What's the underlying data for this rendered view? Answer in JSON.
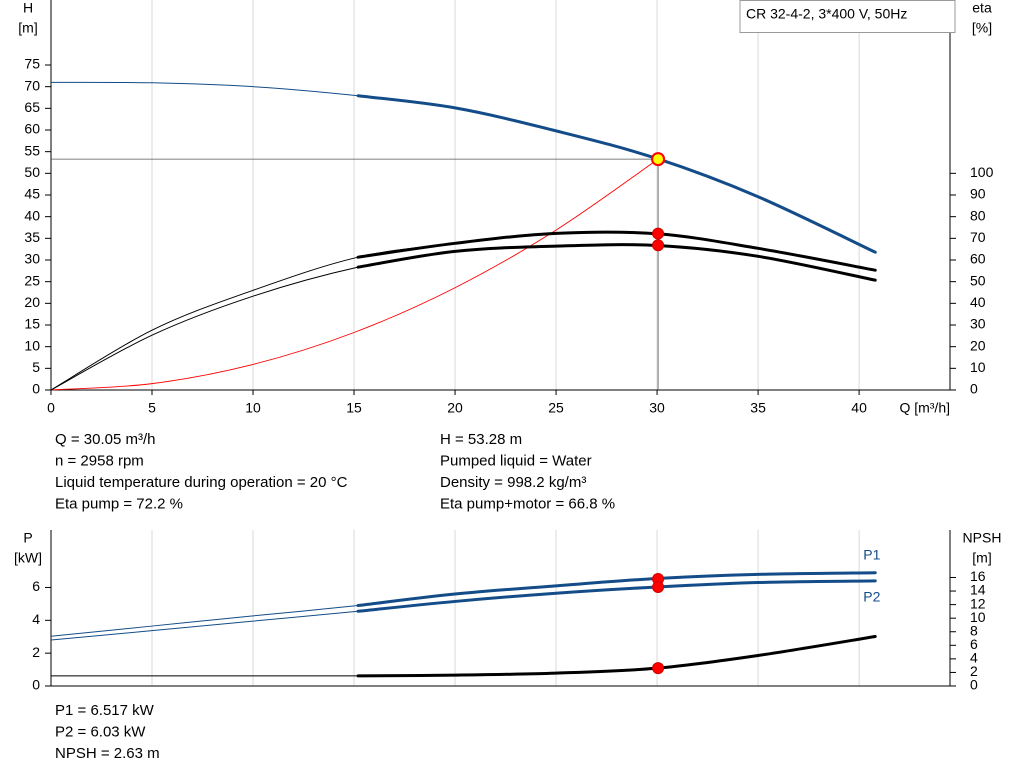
{
  "chart_data": [
    {
      "type": "line",
      "title": "CR 32-4-2, 3*400 V, 50Hz",
      "x_label": "Q [m³/h]",
      "y_label": [
        "H",
        "[m]"
      ],
      "y2_label": [
        "eta",
        "[%]"
      ],
      "x": [
        0,
        5,
        10,
        15.2,
        20,
        25,
        30,
        35,
        40.8
      ],
      "xlim": [
        0,
        44.5
      ],
      "xticks": [
        0,
        5,
        10,
        15,
        20,
        25,
        30,
        35,
        40
      ],
      "x_tick_labels": true,
      "ylim": [
        0,
        90
      ],
      "yticks": [
        0,
        5,
        10,
        15,
        20,
        25,
        30,
        35,
        40,
        45,
        50,
        55,
        60,
        65,
        70,
        75
      ],
      "y2lim": [
        0,
        180
      ],
      "y2ticks": [
        0,
        10,
        20,
        30,
        40,
        50,
        60,
        70,
        80,
        90,
        100
      ],
      "grid": "x",
      "operating_range": [
        15.2,
        40.8
      ],
      "duty_x": 30.05,
      "duty_lines": true,
      "series": [
        {
          "color": "#134c88",
          "values": [
            71,
            70.9,
            70,
            67.9,
            65.1,
            59.8,
            53.4,
            44.6,
            31.8
          ],
          "duty": 53.28
        },
        {
          "color": "#000000",
          "axis": "y2",
          "values": [
            0,
            27.6,
            46,
            61.3,
            67.7,
            72.3,
            72.1,
            65.4,
            55.3
          ],
          "duty": 72.2
        },
        {
          "color": "#000000",
          "axis": "y2",
          "values": [
            0,
            25.3,
            43.3,
            56.7,
            64,
            66.4,
            66.7,
            61.7,
            50.7
          ],
          "duty": 66.8
        }
      ],
      "system_curve": {
        "color": "#ff0000",
        "x": [
          0,
          5,
          10,
          15,
          20,
          25,
          30.05
        ],
        "values": [
          0,
          1.47,
          5.9,
          13.27,
          23.6,
          36.9,
          53.28
        ]
      },
      "info": [
        [
          "Q = 30.05 m³/h",
          "n = 2958 rpm",
          "Liquid temperature during operation = 20 °C",
          "Eta pump = 72.2 %"
        ],
        [
          "H = 53.28 m",
          "Pumped liquid = Water",
          "Density = 998.2 kg/m³",
          "Eta pump+motor = 66.8 %"
        ]
      ]
    },
    {
      "type": "line",
      "y_label": [
        "P",
        "[kW]"
      ],
      "y2_label": [
        "NPSH",
        "[m]"
      ],
      "x": [
        0,
        5,
        10,
        15.2,
        20,
        25,
        30,
        35,
        40.8
      ],
      "xlim": [
        0,
        44.5
      ],
      "xticks": [
        0,
        5,
        10,
        15,
        20,
        25,
        30,
        35,
        40
      ],
      "x_tick_labels": false,
      "ylim": [
        0,
        9.5
      ],
      "yticks": [
        0,
        2,
        4,
        6
      ],
      "y2lim": [
        0,
        23
      ],
      "y2ticks": [
        0,
        2,
        4,
        6,
        8,
        10,
        12,
        14,
        16
      ],
      "grid": "x",
      "operating_range": [
        15.2,
        40.8
      ],
      "duty_x": 30.05,
      "duty_lines": false,
      "series": [
        {
          "name": "P1",
          "color": "#134c88",
          "values": [
            3.03,
            3.65,
            4.27,
            4.9,
            5.6,
            6.1,
            6.55,
            6.8,
            6.9
          ],
          "duty": 6.517
        },
        {
          "name": "P2",
          "color": "#134c88",
          "values": [
            2.8,
            3.37,
            3.95,
            4.55,
            5.15,
            5.65,
            6.03,
            6.3,
            6.4
          ],
          "duty": 6.03
        },
        {
          "color": "#000000",
          "axis": "y2",
          "values": [
            1.5,
            1.5,
            1.5,
            1.5,
            1.6,
            1.9,
            2.63,
            4.5,
            7.3
          ],
          "duty": 2.63
        }
      ],
      "info": [
        [
          "P1 = 6.517 kW",
          "P2 = 6.03 kW",
          "NPSH = 2.63 m"
        ]
      ]
    }
  ]
}
